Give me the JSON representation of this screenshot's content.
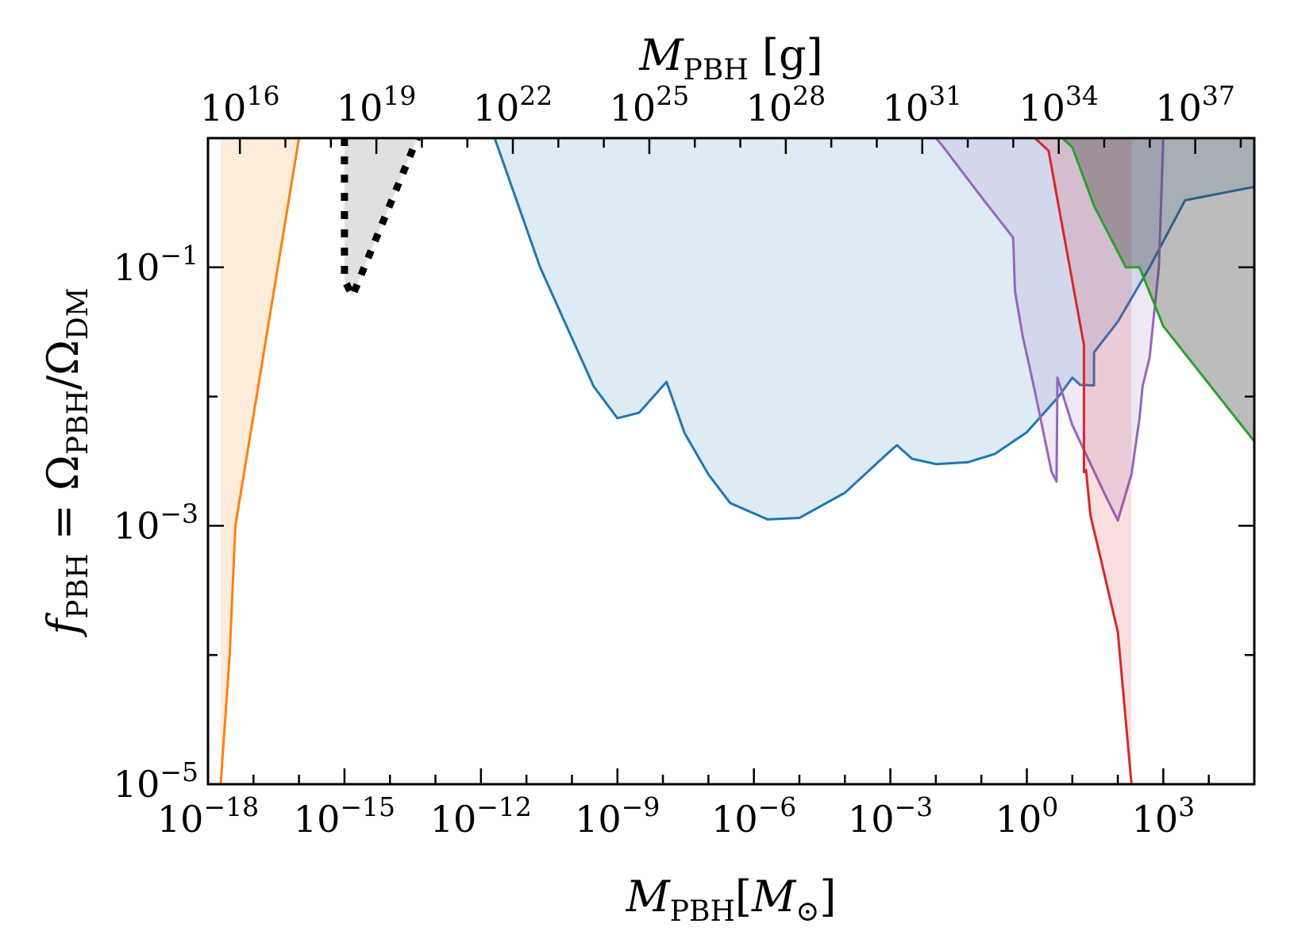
{
  "chart_data": {
    "type": "area",
    "xlabel": {
      "main": "M",
      "sub": "PBH",
      "unit_open": "[",
      "unit": "M",
      "unit_sub": "⊙",
      "unit_close": "]"
    },
    "ylabel": {
      "main": "f",
      "sub": "PBH",
      "rest": " = Ω",
      "sub2": "PBH",
      "mid": "/Ω",
      "sub3": "DM"
    },
    "x2label": {
      "main": "M",
      "sub": "PBH",
      "unit": " [g]"
    },
    "x_scale": "log",
    "y_scale": "log",
    "xlim": [
      1e-18,
      100000.0
    ],
    "ylim": [
      1e-05,
      1
    ],
    "x_ticks": [
      {
        "value": 1e-18,
        "base": "10",
        "exp": "−18"
      },
      {
        "value": 1e-15,
        "base": "10",
        "exp": "−15"
      },
      {
        "value": 1e-12,
        "base": "10",
        "exp": "−12"
      },
      {
        "value": 1e-09,
        "base": "10",
        "exp": "−9"
      },
      {
        "value": 1e-06,
        "base": "10",
        "exp": "−6"
      },
      {
        "value": 0.001,
        "base": "10",
        "exp": "−3"
      },
      {
        "value": 1,
        "base": "10",
        "exp": "0"
      },
      {
        "value": 1000.0,
        "base": "10",
        "exp": "3"
      }
    ],
    "y_ticks": [
      {
        "value": 1e-05,
        "base": "10",
        "exp": "−5"
      },
      {
        "value": 0.001,
        "base": "10",
        "exp": "−3"
      },
      {
        "value": 0.1,
        "base": "10",
        "exp": "−1"
      }
    ],
    "x2_ticks": [
      {
        "grams": 1e+16,
        "base": "10",
        "exp": "16"
      },
      {
        "grams": 1e+19,
        "base": "10",
        "exp": "19"
      },
      {
        "grams": 1e+22,
        "base": "10",
        "exp": "22"
      },
      {
        "grams": 1e+25,
        "base": "10",
        "exp": "25"
      },
      {
        "grams": 1e+28,
        "base": "10",
        "exp": "28"
      },
      {
        "grams": 1e+31,
        "base": "10",
        "exp": "31"
      },
      {
        "grams": 1e+34,
        "base": "10",
        "exp": "34"
      },
      {
        "grams": 1e+37,
        "base": "10",
        "exp": "37"
      }
    ],
    "solar_mass_grams": 1.989e+33,
    "grid": false,
    "series": [
      {
        "color": "#ff7f0e",
        "fill": "#ff7f0e",
        "fill_opacity": 0.15,
        "points": [
          [
            1.9e-18,
            1e-05
          ],
          [
            3e-18,
            0.0001
          ],
          [
            4e-18,
            0.001
          ],
          [
            1e-16,
            1
          ]
        ]
      },
      {
        "color": "#1f77b4",
        "fill": "#1f77b4",
        "fill_opacity": 0.15,
        "points": [
          [
            2e-12,
            1
          ],
          [
            2e-11,
            0.1
          ],
          [
            3e-10,
            0.012
          ],
          [
            1e-09,
            0.0068
          ],
          [
            3e-09,
            0.0075
          ],
          [
            1.2e-08,
            0.013
          ],
          [
            3e-08,
            0.0052
          ],
          [
            1e-07,
            0.0025
          ],
          [
            3e-07,
            0.0015
          ],
          [
            2e-06,
            0.00112
          ],
          [
            1e-05,
            0.00115
          ],
          [
            0.0001,
            0.0018
          ],
          [
            0.001,
            0.0038
          ],
          [
            0.0014,
            0.0042
          ],
          [
            0.003,
            0.0033
          ],
          [
            0.01,
            0.003
          ],
          [
            0.05,
            0.0031
          ],
          [
            0.2,
            0.0036
          ],
          [
            1.0,
            0.0053
          ],
          [
            5.0,
            0.01
          ],
          [
            10,
            0.014
          ],
          [
            15,
            0.0123
          ],
          [
            30,
            0.0122
          ],
          [
            30,
            0.022
          ],
          [
            100,
            0.038
          ],
          [
            500,
            0.1
          ],
          [
            3000,
            0.33
          ],
          [
            100000.0,
            0.42
          ]
        ]
      },
      {
        "color": "#9467bd",
        "fill": "#9467bd",
        "fill_opacity": 0.15,
        "points": [
          [
            0.01,
            1
          ],
          [
            0.013,
            0.9
          ],
          [
            0.1,
            0.35
          ],
          [
            0.5,
            0.17
          ],
          [
            0.55,
            0.065
          ],
          [
            0.8,
            0.03
          ],
          [
            1.5,
            0.011
          ],
          [
            3.5,
            0.0026
          ],
          [
            4.5,
            0.0022
          ],
          [
            4.7,
            0.014
          ],
          [
            10,
            0.006
          ],
          [
            50,
            0.0018
          ],
          [
            100,
            0.0011
          ],
          [
            200,
            0.0025
          ],
          [
            300,
            0.0068
          ],
          [
            350,
            0.012
          ],
          [
            500,
            0.02
          ],
          [
            800,
            0.1
          ],
          [
            1000,
            1
          ]
        ]
      },
      {
        "color": "#d62728",
        "fill": "#d62728",
        "fill_opacity": 0.15,
        "points": [
          [
            1.5,
            1
          ],
          [
            3.0,
            0.8
          ],
          [
            18,
            0.025
          ],
          [
            18,
            0.0026
          ],
          [
            20,
            0.0027
          ],
          [
            25,
            0.0012
          ],
          [
            40,
            0.0006
          ],
          [
            100,
            0.00015
          ],
          [
            200,
            1e-05
          ]
        ]
      },
      {
        "color": "#2ca02c",
        "fill": "#404040",
        "fill_opacity": 0.35,
        "points": [
          [
            6,
            1
          ],
          [
            10,
            0.85
          ],
          [
            30,
            0.3
          ],
          [
            150,
            0.1
          ],
          [
            300,
            0.1
          ],
          [
            1000,
            0.035
          ],
          [
            100000.0,
            0.0045
          ]
        ]
      },
      {
        "color": "#000000",
        "fill": "#000000",
        "fill_opacity": 0.12,
        "dotted": true,
        "points": [
          [
            1e-15,
            1
          ],
          [
            1e-15,
            0.08
          ],
          [
            1.5e-15,
            0.06
          ],
          [
            4e-14,
            1
          ]
        ]
      }
    ],
    "top_band": {
      "from": 0.99,
      "to": 1.0,
      "color": "#4d4d4d",
      "opacity": 0.5
    }
  }
}
